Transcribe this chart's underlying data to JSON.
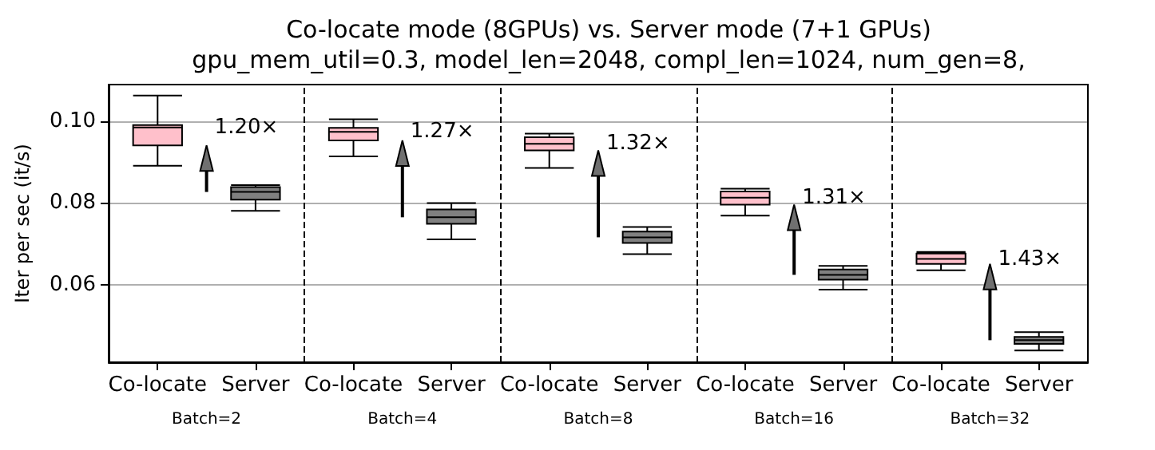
{
  "chart_data": {
    "type": "box",
    "title": "Co-locate mode (8GPUs) vs. Server mode (7+1 GPUs)",
    "subtitle": "gpu_mem_util=0.3, model_len=2048, compl_len=1024, num_gen=8,",
    "ylabel": "Iter per sec (it/s)",
    "categories": [
      "Co-locate",
      "Server",
      "Co-locate",
      "Server",
      "Co-locate",
      "Server",
      "Co-locate",
      "Server",
      "Co-locate",
      "Server"
    ],
    "boxes": [
      {
        "low": 0.0891,
        "q1": 0.0941,
        "median": 0.0985,
        "q3": 0.0991,
        "high": 0.1063
      },
      {
        "low": 0.0781,
        "q1": 0.0808,
        "median": 0.0827,
        "q3": 0.0839,
        "high": 0.0844
      },
      {
        "low": 0.0914,
        "q1": 0.0953,
        "median": 0.0974,
        "q3": 0.0984,
        "high": 0.1005
      },
      {
        "low": 0.0711,
        "q1": 0.0749,
        "median": 0.0765,
        "q3": 0.0784,
        "high": 0.08
      },
      {
        "low": 0.0886,
        "q1": 0.0929,
        "median": 0.0945,
        "q3": 0.0961,
        "high": 0.097
      },
      {
        "low": 0.0675,
        "q1": 0.0702,
        "median": 0.0716,
        "q3": 0.073,
        "high": 0.0741
      },
      {
        "low": 0.0769,
        "q1": 0.0796,
        "median": 0.0813,
        "q3": 0.0828,
        "high": 0.0835
      },
      {
        "low": 0.0588,
        "q1": 0.0612,
        "median": 0.0624,
        "q3": 0.0637,
        "high": 0.0646
      },
      {
        "low": 0.0635,
        "q1": 0.0651,
        "median": 0.0663,
        "q3": 0.0676,
        "high": 0.068
      },
      {
        "low": 0.0439,
        "q1": 0.0455,
        "median": 0.0464,
        "q3": 0.0472,
        "high": 0.0484
      }
    ],
    "colors": [
      "#ffc0cb",
      "#808080",
      "#ffc0cb",
      "#808080",
      "#ffc0cb",
      "#808080",
      "#ffc0cb",
      "#808080",
      "#ffc0cb",
      "#808080"
    ],
    "ylim": [
      0.041,
      0.109
    ],
    "yticks": [
      {
        "value": 0.06,
        "label": "0.06"
      },
      {
        "value": 0.08,
        "label": "0.08"
      },
      {
        "value": 0.1,
        "label": "0.10"
      }
    ],
    "grid": "y",
    "annotations": [
      "1.20×",
      "1.27×",
      "1.32×",
      "1.31×",
      "1.43×",
      "Batch=2",
      "Batch=4",
      "Batch=8",
      "Batch=16",
      "Batch=32"
    ]
  }
}
